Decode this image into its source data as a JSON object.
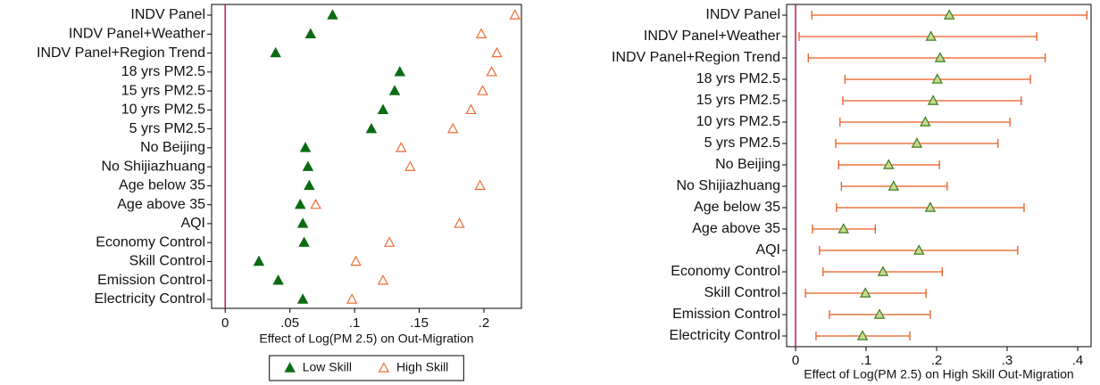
{
  "chart_data": [
    {
      "type": "scatter",
      "x_label": "Effect of Log(PM 2.5) on Out-Migration",
      "categories": [
        "INDV Panel",
        "INDV Panel+Weather",
        "INDV Panel+Region Trend",
        "18 yrs PM2.5",
        "15 yrs PM2.5",
        "10 yrs PM2.5",
        "5 yrs PM2.5",
        "No Beijing",
        "No Shijiazhuang",
        "Age below 35",
        "Age above 35",
        "AQI",
        "Economy Control",
        "Skill Control",
        "Emission Control",
        "Electricity Control"
      ],
      "series": [
        {
          "name": "Low Skill",
          "color": "#0b6b12",
          "marker_fill": true,
          "values": [
            0.083,
            0.066,
            0.039,
            0.135,
            0.131,
            0.122,
            0.113,
            0.062,
            0.064,
            0.065,
            0.058,
            0.06,
            0.061,
            0.026,
            0.041,
            0.06
          ]
        },
        {
          "name": "High Skill",
          "color": "#ee6a33",
          "marker_fill": false,
          "values": [
            0.224,
            0.198,
            0.21,
            0.206,
            0.199,
            0.19,
            0.176,
            0.136,
            0.143,
            0.197,
            0.07,
            0.181,
            0.127,
            0.101,
            0.122,
            0.098
          ]
        }
      ],
      "xlim": [
        -0.0105,
        0.229
      ],
      "xticks": [
        0,
        {
          "value": 0.05,
          "label": ".05"
        },
        {
          "value": 0.1,
          "label": ".1"
        },
        {
          "value": 0.15,
          "label": ".15"
        },
        {
          "value": 0.2,
          "label": ".2"
        }
      ],
      "reference_line": {
        "value": 0,
        "color": "#c0185a"
      },
      "legend": "bottom"
    },
    {
      "type": "errorbar",
      "x_label": "Effect of Log(PM 2.5) on High Skill Out-Migration",
      "categories": [
        "INDV Panel",
        "INDV Panel+Weather",
        "INDV Panel+Region Trend",
        "18 yrs PM2.5",
        "15 yrs PM2.5",
        "10 yrs PM2.5",
        "5 yrs PM2.5",
        "No Beijing",
        "No Shijiazhuang",
        "Age below 35",
        "Age above 35",
        "AQI",
        "Economy Control",
        "Skill Control",
        "Emission Control",
        "Electricity Control"
      ],
      "series": [
        {
          "color": "#ea5b1f",
          "marker_color": "#3d7a1c",
          "marker_fill_color": "#c9d98f",
          "values": [
            0.218,
            0.192,
            0.205,
            0.201,
            0.195,
            0.184,
            0.172,
            0.132,
            0.139,
            0.191,
            0.068,
            0.175,
            0.124,
            0.099,
            0.119,
            0.095
          ],
          "lower": [
            0.023,
            0.005,
            0.018,
            0.07,
            0.067,
            0.063,
            0.057,
            0.061,
            0.065,
            0.058,
            0.024,
            0.034,
            0.039,
            0.014,
            0.048,
            0.029
          ],
          "upper": [
            0.413,
            0.342,
            0.354,
            0.333,
            0.32,
            0.304,
            0.287,
            0.204,
            0.215,
            0.324,
            0.113,
            0.315,
            0.208,
            0.185,
            0.191,
            0.162
          ]
        }
      ],
      "xlim": [
        -0.0127,
        0.419
      ],
      "xticks": [
        0,
        {
          "value": 0.1,
          "label": ".1"
        },
        {
          "value": 0.2,
          "label": ".2"
        },
        {
          "value": 0.3,
          "label": ".3"
        },
        {
          "value": 0.4,
          "label": ".4"
        }
      ],
      "reference_line": {
        "value": 0,
        "color": "#c0185a"
      }
    }
  ]
}
